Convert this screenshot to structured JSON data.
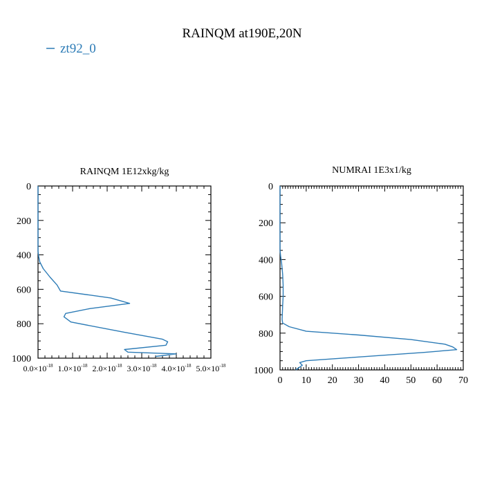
{
  "figure": {
    "title": "RAINQM at190E,20N",
    "legend": {
      "label": "zt92_0",
      "color": "#2c7bb6",
      "placement": "top-left"
    }
  },
  "chart_data": [
    {
      "type": "line",
      "title": "RAINQM  1E12xkg/kg",
      "xlabel": "",
      "ylabel": "",
      "xlim": [
        0,
        5e-18
      ],
      "ylim": [
        1000,
        0
      ],
      "y_inverted": true,
      "xticks": [
        "0.0×10",
        "1.0×10",
        "2.0×10",
        "3.0×10",
        "4.0×10",
        "5.0×10"
      ],
      "xtick_exponent": "-18",
      "yticks": [
        "0",
        "200",
        "400",
        "600",
        "800",
        "1000"
      ],
      "grid": false,
      "series": [
        {
          "name": "zt92_0",
          "x": [
            0,
            0,
            2e-20,
            5e-20,
            1.5e-19,
            3.5e-19,
            5.5e-19,
            6.5e-19,
            2.1e-18,
            2.65e-18,
            1.5e-18,
            8e-19,
            7.5e-19,
            9.5e-19,
            2.5e-18,
            3.6e-18,
            3.75e-18,
            3.7e-18,
            2.5e-18,
            2.6e-18,
            4e-18,
            3.4e-18
          ],
          "y": [
            0,
            380,
            410,
            440,
            480,
            530,
            575,
            610,
            650,
            682,
            712,
            740,
            760,
            790,
            850,
            890,
            905,
            925,
            950,
            965,
            975,
            990
          ]
        }
      ]
    },
    {
      "type": "line",
      "title": "NUMRAI  1E3x1/kg",
      "xlabel": "",
      "ylabel": "",
      "xlim": [
        0,
        70
      ],
      "ylim": [
        1000,
        0
      ],
      "y_inverted": true,
      "xticks": [
        "0",
        "10",
        "20",
        "30",
        "40",
        "50",
        "60",
        "70"
      ],
      "yticks": [
        "0",
        "200",
        "400",
        "600",
        "800",
        "1000"
      ],
      "grid": false,
      "series": [
        {
          "name": "zt92_0",
          "x": [
            0,
            0,
            0.2,
            0.6,
            1.0,
            1.2,
            1.2,
            1.0,
            0.9,
            0.8,
            1.0,
            3.5,
            10,
            30,
            50,
            63,
            66,
            67.5,
            55,
            25,
            10,
            7.5,
            8.5,
            6
          ],
          "y": [
            0,
            350,
            380,
            420,
            480,
            540,
            600,
            650,
            690,
            725,
            745,
            765,
            790,
            810,
            835,
            860,
            875,
            890,
            905,
            935,
            950,
            960,
            975,
            1000
          ]
        }
      ]
    }
  ]
}
